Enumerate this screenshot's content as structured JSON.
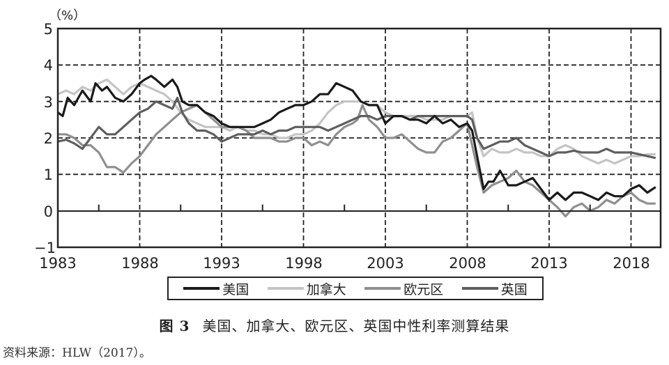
{
  "chart_data": {
    "type": "line",
    "title": "图 3 美国、加拿大、欧元区、英国中性利率测算结果",
    "xlabel": "",
    "ylabel": "（%）",
    "xlim": [
      1983,
      2019.8
    ],
    "ylim": [
      -1,
      5
    ],
    "xticks": [
      1983,
      1988,
      1993,
      1998,
      2003,
      2008,
      2013,
      2018
    ],
    "yticks": [
      -1,
      0,
      1,
      2,
      3,
      4,
      5
    ],
    "grid": "dashed",
    "legend_position": "bottom",
    "series": [
      {
        "name": "美国",
        "color": "#1a1a1a",
        "x": [
          1983,
          1983.3,
          1983.6,
          1984,
          1984.5,
          1985,
          1985.3,
          1985.7,
          1986,
          1986.5,
          1987,
          1987.5,
          1988,
          1988.3,
          1988.7,
          1989,
          1989.5,
          1990,
          1990.3,
          1990.6,
          1991,
          1991.5,
          1992,
          1992.5,
          1993,
          1993.5,
          1994,
          1994.5,
          1995,
          1995.5,
          1996,
          1996.5,
          1997,
          1997.5,
          1998,
          1998.5,
          1999,
          1999.5,
          2000,
          2000.5,
          2001,
          2001.5,
          2002,
          2002.5,
          2003,
          2003.5,
          2004,
          2004.5,
          2005,
          2005.5,
          2006,
          2006.5,
          2007,
          2007.5,
          2008,
          2008.3,
          2008.6,
          2009,
          2009.3,
          2009.6,
          2010,
          2010.5,
          2011,
          2011.5,
          2012,
          2012.5,
          2013,
          2013.5,
          2014,
          2014.5,
          2015,
          2015.5,
          2016,
          2016.5,
          2017,
          2017.5,
          2018,
          2018.5,
          2019,
          2019.5
        ],
        "values": [
          2.7,
          2.6,
          3.1,
          2.9,
          3.3,
          3.0,
          3.5,
          3.3,
          3.4,
          3.1,
          3.0,
          3.2,
          3.5,
          3.6,
          3.7,
          3.6,
          3.4,
          3.6,
          3.4,
          3.0,
          2.9,
          2.9,
          2.7,
          2.6,
          2.4,
          2.3,
          2.3,
          2.3,
          2.3,
          2.4,
          2.5,
          2.7,
          2.8,
          2.9,
          2.9,
          3.0,
          3.2,
          3.2,
          3.5,
          3.4,
          3.3,
          3.0,
          2.9,
          2.9,
          2.4,
          2.6,
          2.6,
          2.5,
          2.5,
          2.4,
          2.6,
          2.4,
          2.5,
          2.3,
          2.4,
          2.2,
          1.5,
          0.6,
          0.8,
          0.8,
          1.1,
          0.7,
          0.7,
          0.8,
          0.9,
          0.6,
          0.3,
          0.5,
          0.3,
          0.5,
          0.5,
          0.4,
          0.3,
          0.5,
          0.4,
          0.4,
          0.6,
          0.7,
          0.5,
          0.65
        ]
      },
      {
        "name": "加拿大",
        "color": "#c4c4c4",
        "x": [
          1983,
          1983.5,
          1984,
          1984.5,
          1985,
          1985.5,
          1986,
          1986.5,
          1987,
          1987.5,
          1988,
          1988.5,
          1989,
          1989.5,
          1990,
          1990.5,
          1991,
          1991.5,
          1992,
          1992.5,
          1993,
          1993.5,
          1994,
          1994.5,
          1995,
          1995.5,
          1996,
          1996.5,
          1997,
          1997.5,
          1998,
          1998.5,
          1999,
          1999.5,
          2000,
          2000.5,
          2001,
          2001.5,
          2002,
          2002.5,
          2003,
          2003.5,
          2004,
          2004.5,
          2005,
          2005.5,
          2006,
          2006.5,
          2007,
          2007.5,
          2008,
          2008.3,
          2008.6,
          2009,
          2009.5,
          2010,
          2010.5,
          2011,
          2011.5,
          2012,
          2012.5,
          2013,
          2013.5,
          2014,
          2014.5,
          2015,
          2015.5,
          2016,
          2016.5,
          2017,
          2017.5,
          2018,
          2018.5,
          2019,
          2019.5
        ],
        "values": [
          3.2,
          3.3,
          3.2,
          3.4,
          3.3,
          3.5,
          3.6,
          3.4,
          3.2,
          3.4,
          3.5,
          3.4,
          3.3,
          3.2,
          3.0,
          2.7,
          2.5,
          2.4,
          2.3,
          2.3,
          2.3,
          2.2,
          2.3,
          2.2,
          2.2,
          2.1,
          2.1,
          2.0,
          2.0,
          2.1,
          2.1,
          2.2,
          2.4,
          2.7,
          2.9,
          3.0,
          3.0,
          3.0,
          2.9,
          2.9,
          2.7,
          2.6,
          2.6,
          2.6,
          2.6,
          2.5,
          2.5,
          2.5,
          2.6,
          2.6,
          2.6,
          2.7,
          2.0,
          1.5,
          1.7,
          1.6,
          1.6,
          1.7,
          1.6,
          1.6,
          1.5,
          1.5,
          1.7,
          1.8,
          1.7,
          1.5,
          1.4,
          1.3,
          1.4,
          1.3,
          1.4,
          1.5,
          1.5,
          1.55,
          1.55
        ]
      },
      {
        "name": "欧元区",
        "color": "#8f8f8f",
        "x": [
          1983,
          1983.5,
          1984,
          1984.5,
          1985,
          1985.5,
          1986,
          1986.5,
          1987,
          1987.5,
          1988,
          1988.5,
          1989,
          1989.5,
          1990,
          1990.5,
          1991,
          1991.5,
          1992,
          1992.5,
          1993,
          1993.5,
          1994,
          1994.5,
          1995,
          1995.5,
          1996,
          1996.5,
          1997,
          1997.5,
          1998,
          1998.5,
          1999,
          1999.5,
          2000,
          2000.5,
          2001,
          2001.3,
          2001.6,
          2002,
          2002.5,
          2003,
          2003.5,
          2004,
          2004.5,
          2005,
          2005.5,
          2006,
          2006.5,
          2007,
          2007.5,
          2008,
          2008.3,
          2008.6,
          2009,
          2009.5,
          2010,
          2010.5,
          2011,
          2011.5,
          2012,
          2012.5,
          2013,
          2013.5,
          2014,
          2014.5,
          2015,
          2015.5,
          2016,
          2016.5,
          2017,
          2017.5,
          2018,
          2018.5,
          2019,
          2019.5
        ],
        "values": [
          2.1,
          2.1,
          2.0,
          1.8,
          1.8,
          1.6,
          1.2,
          1.2,
          1.05,
          1.3,
          1.5,
          1.8,
          2.1,
          2.3,
          2.5,
          2.7,
          2.8,
          2.9,
          2.7,
          2.5,
          2.3,
          2.3,
          2.3,
          2.2,
          2.0,
          2.0,
          2.0,
          1.9,
          1.9,
          2.0,
          2.0,
          1.8,
          1.9,
          1.8,
          2.1,
          2.3,
          2.4,
          2.5,
          2.9,
          2.5,
          2.3,
          2.0,
          2.0,
          2.1,
          1.9,
          1.7,
          1.6,
          1.6,
          1.9,
          2.0,
          2.2,
          2.4,
          1.8,
          1.2,
          0.5,
          0.7,
          0.8,
          0.9,
          1.1,
          0.8,
          0.7,
          0.5,
          0.3,
          0.1,
          -0.15,
          0.1,
          0.2,
          0.0,
          0.1,
          0.3,
          0.2,
          0.4,
          0.5,
          0.3,
          0.2,
          0.2
        ]
      },
      {
        "name": "英国",
        "color": "#5e5e5e",
        "x": [
          1983,
          1983.5,
          1984,
          1984.5,
          1985,
          1985.5,
          1986,
          1986.5,
          1987,
          1987.5,
          1988,
          1988.5,
          1989,
          1989.5,
          1990,
          1990.3,
          1990.6,
          1991,
          1991.5,
          1992,
          1992.5,
          1993,
          1993.5,
          1994,
          1994.5,
          1995,
          1995.5,
          1996,
          1996.5,
          1997,
          1997.5,
          1998,
          1998.5,
          1999,
          1999.5,
          2000,
          2000.5,
          2001,
          2001.5,
          2002,
          2002.5,
          2003,
          2003.5,
          2004,
          2004.5,
          2005,
          2005.5,
          2006,
          2006.5,
          2007,
          2007.5,
          2008,
          2008.3,
          2008.6,
          2009,
          2009.5,
          2010,
          2010.5,
          2011,
          2011.5,
          2012,
          2012.5,
          2013,
          2013.5,
          2014,
          2014.5,
          2015,
          2015.5,
          2016,
          2016.5,
          2017,
          2017.5,
          2018,
          2018.5,
          2019,
          2019.5
        ],
        "values": [
          1.9,
          1.95,
          1.85,
          1.7,
          2.0,
          2.3,
          2.1,
          2.1,
          2.3,
          2.5,
          2.7,
          2.8,
          3.0,
          2.9,
          2.8,
          3.1,
          2.7,
          2.4,
          2.2,
          2.2,
          2.1,
          1.9,
          2.0,
          2.1,
          2.1,
          2.1,
          2.2,
          2.1,
          2.2,
          2.2,
          2.3,
          2.3,
          2.3,
          2.3,
          2.2,
          2.3,
          2.4,
          2.5,
          2.6,
          2.6,
          2.5,
          2.6,
          2.6,
          2.6,
          2.5,
          2.6,
          2.6,
          2.6,
          2.6,
          2.6,
          2.6,
          2.6,
          2.5,
          2.0,
          1.7,
          1.8,
          1.9,
          1.9,
          2.0,
          1.8,
          1.7,
          1.6,
          1.5,
          1.6,
          1.6,
          1.65,
          1.6,
          1.6,
          1.6,
          1.7,
          1.6,
          1.6,
          1.6,
          1.55,
          1.5,
          1.45
        ]
      }
    ]
  },
  "axes": {
    "unit_label": "（%）",
    "y_tick_labels": [
      "5",
      "4",
      "3",
      "2",
      "1",
      "0",
      "−1"
    ],
    "x_tick_labels": [
      "1983",
      "1988",
      "1993",
      "1998",
      "2003",
      "2008",
      "2013",
      "2018"
    ]
  },
  "legend": {
    "items": [
      {
        "label": "美国",
        "color": "#1a1a1a"
      },
      {
        "label": "加拿大",
        "color": "#c4c4c4"
      },
      {
        "label": "欧元区",
        "color": "#8f8f8f"
      },
      {
        "label": "英国",
        "color": "#5e5e5e"
      }
    ]
  },
  "caption": {
    "figure_number": "图 3",
    "text": "美国、加拿大、欧元区、英国中性利率测算结果"
  },
  "source": {
    "text": "资料来源：HLW（2017）。"
  }
}
